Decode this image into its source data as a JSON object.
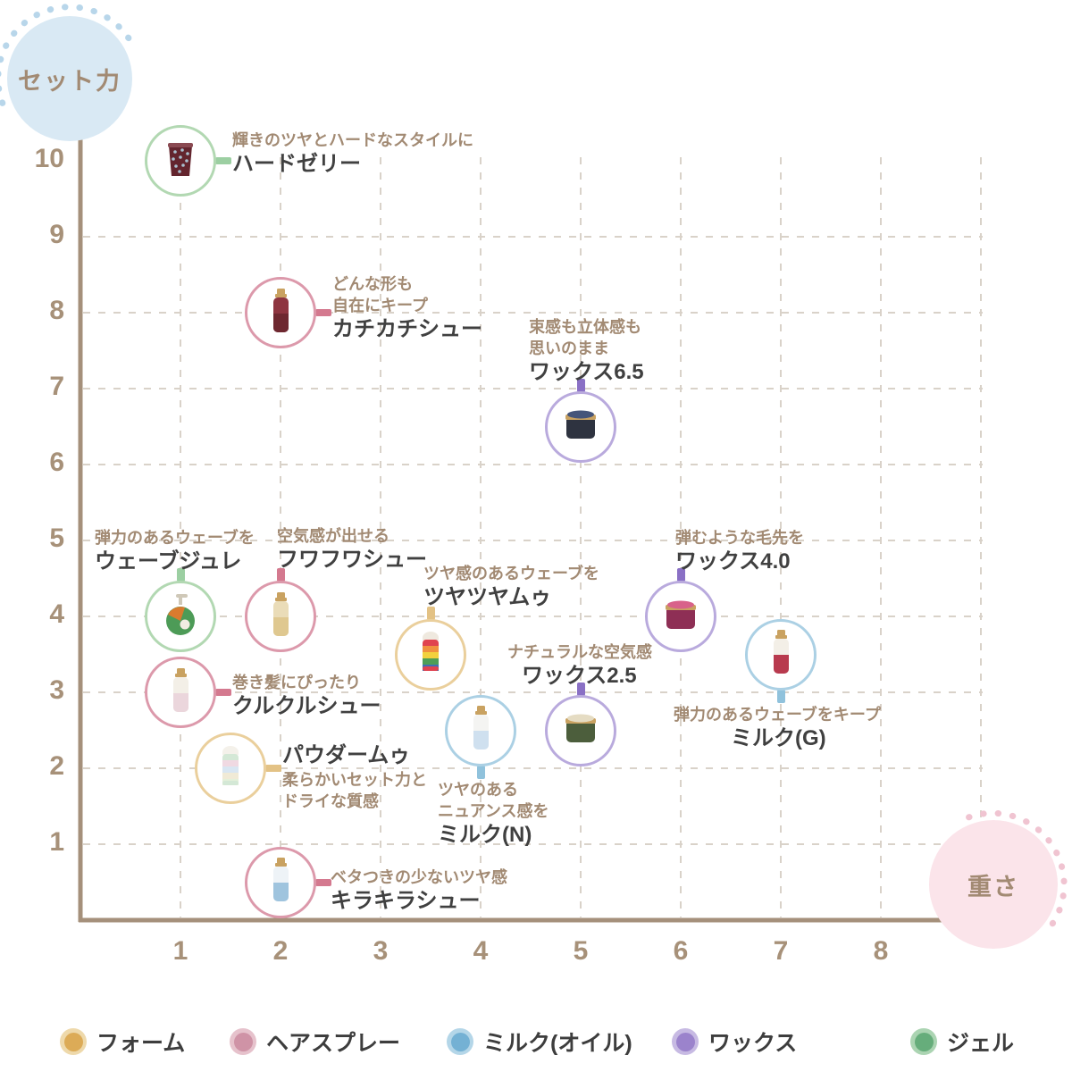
{
  "axis": {
    "y_title": "セット力",
    "x_title": "重さ",
    "y_ticks": [
      "10",
      "9",
      "8",
      "7",
      "6",
      "5",
      "4",
      "3",
      "2",
      "1"
    ],
    "x_ticks": [
      "1",
      "2",
      "3",
      "4",
      "5",
      "6",
      "7",
      "8"
    ]
  },
  "colors": {
    "text_tan": "#a28a73",
    "text_dark": "#404040",
    "axis": "#a5907b",
    "tick": "#a79179",
    "grid": "#d9d2c9",
    "y_bubble_fill": "#d9e9f4",
    "y_bubble_dots": "#b8d6ea",
    "x_bubble_fill": "#fbe4ea",
    "x_bubble_dots": "#f0c4d1"
  },
  "chart_data": {
    "type": "scatter",
    "title": "",
    "xlabel": "重さ",
    "ylabel": "セット力",
    "xlim": [
      0,
      9
    ],
    "ylim": [
      0,
      11
    ],
    "grid": true,
    "legend_position": "bottom",
    "categories": [
      {
        "label": "フォーム",
        "dot_inner": "#dcab57",
        "dot_outer": "#eed9ab",
        "circle": "#eacf9c",
        "connector": "#e3c285"
      },
      {
        "label": "ヘアスプレー",
        "dot_inner": "#cf93a6",
        "dot_outer": "#e6c2cc",
        "circle": "#dc99ab",
        "connector": "#d4798f"
      },
      {
        "label": "ミルク(オイル)",
        "dot_inner": "#74b1d4",
        "dot_outer": "#b4d6e8",
        "circle": "#abd0e4",
        "connector": "#90c2dc"
      },
      {
        "label": "ワックス",
        "dot_inner": "#9b83cc",
        "dot_outer": "#c7bae3",
        "circle": "#b9aadd",
        "connector": "#8a70c5"
      },
      {
        "label": "ジェル",
        "dot_inner": "#66ad7b",
        "dot_outer": "#abd4b2",
        "circle": "#b2d8b2",
        "connector": "#9ccfa2"
      }
    ],
    "points": [
      {
        "name": "ハードゼリー",
        "desc": [
          "輝きのツヤとハードなスタイルに"
        ],
        "x": 1,
        "y": 10,
        "category": "ジェル",
        "icon": {
          "shape": "cup",
          "colors": [
            "#8a4a52",
            "#63252e",
            "#a9c0cf"
          ]
        }
      },
      {
        "name": "カチカチシュー",
        "desc": [
          "どんな形も",
          "自在にキープ"
        ],
        "x": 2,
        "y": 8,
        "category": "ヘアスプレー",
        "icon": {
          "shape": "spray",
          "colors": [
            "#c9a261",
            "#8e3540",
            "#6e2830"
          ]
        }
      },
      {
        "name": "ワックス6.5",
        "desc": [
          "束感も立体感も",
          "思いのまま"
        ],
        "x": 5,
        "y": 6.5,
        "category": "ワックス",
        "icon": {
          "shape": "jar",
          "colors": [
            "#45557a",
            "#2e3340",
            "#c9a261"
          ]
        }
      },
      {
        "name": "ウェーブジュレ",
        "desc": [
          "弾力のあるウェーブを"
        ],
        "x": 1,
        "y": 4,
        "category": "ジェル",
        "icon": {
          "shape": "pump",
          "colors": [
            "#4d9b57",
            "#d97b2e"
          ]
        }
      },
      {
        "name": "フワフワシュー",
        "desc": [
          "空気感が出せる"
        ],
        "x": 2,
        "y": 4,
        "category": "ヘアスプレー",
        "icon": {
          "shape": "spray",
          "colors": [
            "#c9a261",
            "#eadcb8",
            "#dfc890"
          ]
        }
      },
      {
        "name": "ツヤツヤムゥ",
        "desc": [
          "ツヤ感のあるウェーブを"
        ],
        "x": 3.5,
        "y": 3.5,
        "category": "フォーム",
        "icon": {
          "shape": "mousse",
          "cap": "#efe9df",
          "stripes": [
            "#e0434f",
            "#f0913f",
            "#f2d13e",
            "#4f9e56",
            "#3f6fb5"
          ]
        }
      },
      {
        "name": "ワックス4.0",
        "desc": [
          "弾むような毛先を"
        ],
        "x": 6,
        "y": 4,
        "category": "ワックス",
        "icon": {
          "shape": "jar",
          "colors": [
            "#d8628a",
            "#8e2f55",
            "#c9a261"
          ]
        }
      },
      {
        "name": "クルクルシュー",
        "desc": [
          "巻き髪にぴったり"
        ],
        "x": 1,
        "y": 3,
        "category": "ヘアスプレー",
        "icon": {
          "shape": "spray",
          "colors": [
            "#c9a261",
            "#f3efe7",
            "#ebd6dc"
          ]
        }
      },
      {
        "name": "ミルク(G)",
        "desc": [
          "弾力のあるウェーブをキープ"
        ],
        "x": 7,
        "y": 3.5,
        "category": "ミルク(オイル)",
        "icon": {
          "shape": "spray",
          "colors": [
            "#c9a261",
            "#f3efe7",
            "#b83a4e"
          ]
        }
      },
      {
        "name": "ワックス2.5",
        "desc": [
          "ナチュラルな空気感"
        ],
        "x": 5,
        "y": 2.5,
        "category": "ワックス",
        "icon": {
          "shape": "jar",
          "colors": [
            "#e5dcc3",
            "#4c5e3c",
            "#c9a261"
          ]
        }
      },
      {
        "name": "ミルク(N)",
        "desc": [
          "ツヤのある",
          "ニュアンス感を"
        ],
        "x": 4,
        "y": 2.5,
        "category": "ミルク(オイル)",
        "icon": {
          "shape": "spray",
          "colors": [
            "#c9a261",
            "#f4f4f2",
            "#cfe0ef"
          ]
        }
      },
      {
        "name": "パウダームゥ",
        "desc": [
          "柔らかいセット力と",
          "ドライな質感"
        ],
        "x": 1.5,
        "y": 2,
        "category": "フォーム",
        "icon": {
          "shape": "mousse",
          "cap": "#f4f1ea",
          "stripes": [
            "#d4e8d6",
            "#f0d9e2",
            "#d9e6f2",
            "#f0ead6",
            "#e4f0da"
          ]
        }
      },
      {
        "name": "キラキラシュー",
        "desc": [
          "ベタつきの少ないツヤ感"
        ],
        "x": 2,
        "y": 0.5,
        "category": "ヘアスプレー",
        "icon": {
          "shape": "spray",
          "colors": [
            "#c9a261",
            "#eef3f7",
            "#9fc4de"
          ]
        }
      }
    ]
  }
}
